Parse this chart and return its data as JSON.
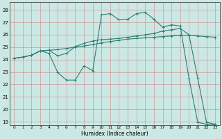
{
  "xlabel": "Humidex (Indice chaleur)",
  "background_color": "#cce8e4",
  "line_color": "#2e7d72",
  "xlim": [
    -0.5,
    23.5
  ],
  "ylim": [
    18.7,
    28.6
  ],
  "yticks": [
    19,
    20,
    21,
    22,
    23,
    24,
    25,
    26,
    27,
    28
  ],
  "xticks": [
    0,
    1,
    2,
    3,
    4,
    5,
    6,
    7,
    8,
    9,
    10,
    11,
    12,
    13,
    14,
    15,
    16,
    17,
    18,
    19,
    20,
    21,
    22,
    23
  ],
  "series": [
    {
      "x": [
        0,
        1,
        2,
        3,
        4,
        5,
        6,
        7,
        8,
        9,
        10,
        11,
        12,
        13,
        14,
        15,
        16,
        17,
        18,
        19,
        20,
        21,
        22,
        23
      ],
      "y": [
        24.1,
        24.2,
        24.35,
        24.7,
        24.75,
        24.8,
        24.9,
        25.0,
        25.1,
        25.2,
        25.35,
        25.45,
        25.55,
        25.65,
        25.7,
        25.75,
        25.8,
        25.85,
        25.9,
        25.95,
        25.95,
        25.9,
        25.85,
        25.8
      ]
    },
    {
      "x": [
        0,
        1,
        2,
        3,
        4,
        5,
        6,
        7,
        8,
        9,
        10,
        11,
        12,
        13,
        14,
        15,
        16,
        17,
        18,
        19,
        20,
        21,
        22,
        23
      ],
      "y": [
        24.1,
        24.2,
        24.35,
        24.7,
        24.75,
        24.3,
        24.5,
        25.05,
        25.3,
        25.5,
        25.6,
        25.65,
        25.7,
        25.8,
        25.9,
        26.0,
        26.1,
        26.3,
        26.4,
        26.5,
        26.0,
        22.5,
        18.95,
        18.8
      ]
    },
    {
      "x": [
        0,
        1,
        2,
        3,
        4,
        5,
        6,
        7,
        8,
        9,
        10,
        11,
        12,
        13,
        14,
        15,
        16,
        17,
        18,
        19,
        20,
        21,
        22,
        23
      ],
      "y": [
        24.1,
        24.2,
        24.35,
        24.7,
        24.5,
        22.95,
        22.35,
        22.35,
        23.5,
        23.1,
        27.6,
        27.7,
        27.2,
        27.25,
        27.7,
        27.8,
        27.25,
        26.6,
        26.8,
        26.7,
        22.5,
        18.95,
        18.8,
        18.75
      ]
    }
  ]
}
